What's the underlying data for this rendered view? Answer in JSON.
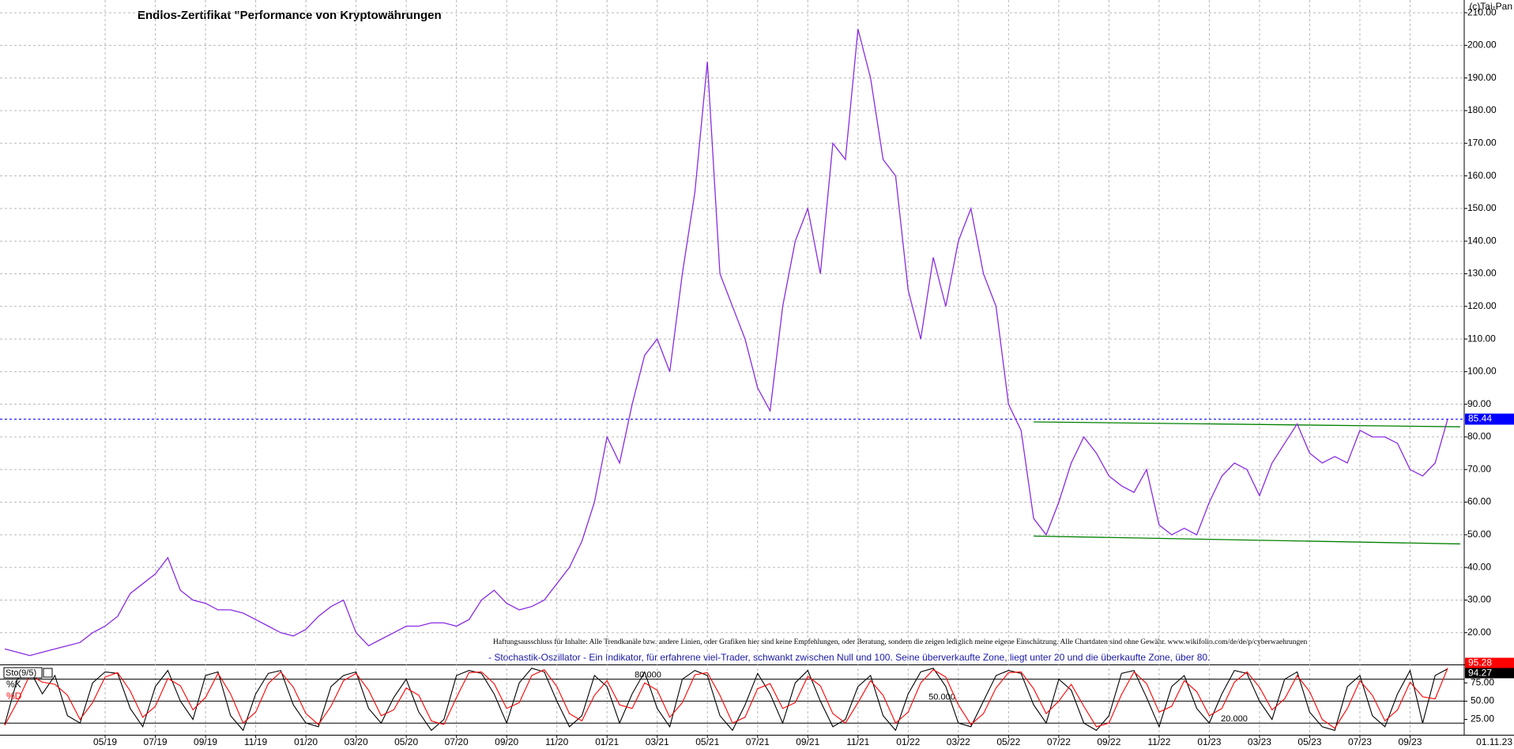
{
  "chart_data": [
    {
      "type": "line",
      "title": "Endlos-Zertifikat \"Performance von Kryptowährungen",
      "copyright": "(c)Tai-Pan",
      "disclaimer": "Haftungsausschluss für Inhalte: Alle Trendkanäle bzw. andere Linien, oder Grafiken hier sind keine Empfehlungen, oder Beratung, sondern die zeigen lediglich meine eigene Einschätzung. Alle Chartdaten sind ohne Gewähr.  www.wikifolio.com/de/de/p/cyberwaehrungen",
      "note": "- Stochastik-Oszillator - Ein Indikator, für erfahrene viel-Trader, schwankt zwischen Null und 100. Seine überverkaufte Zone, liegt unter 20 und die überkaufte Zone, über 80.",
      "last_date": "01.11.23",
      "xlim": [
        0,
        116
      ],
      "xticks": [
        {
          "value": 8,
          "label": "05/19"
        },
        {
          "value": 12,
          "label": "07/19"
        },
        {
          "value": 16,
          "label": "09/19"
        },
        {
          "value": 20,
          "label": "11/19"
        },
        {
          "value": 24,
          "label": "01/20"
        },
        {
          "value": 28,
          "label": "03/20"
        },
        {
          "value": 32,
          "label": "05/20"
        },
        {
          "value": 36,
          "label": "07/20"
        },
        {
          "value": 40,
          "label": "09/20"
        },
        {
          "value": 44,
          "label": "11/20"
        },
        {
          "value": 48,
          "label": "01/21"
        },
        {
          "value": 52,
          "label": "03/21"
        },
        {
          "value": 56,
          "label": "05/21"
        },
        {
          "value": 60,
          "label": "07/21"
        },
        {
          "value": 64,
          "label": "09/21"
        },
        {
          "value": 68,
          "label": "11/21"
        },
        {
          "value": 72,
          "label": "01/22"
        },
        {
          "value": 76,
          "label": "03/22"
        },
        {
          "value": 80,
          "label": "05/22"
        },
        {
          "value": 84,
          "label": "07/22"
        },
        {
          "value": 88,
          "label": "09/22"
        },
        {
          "value": 92,
          "label": "11/22"
        },
        {
          "value": 96,
          "label": "01/23"
        },
        {
          "value": 100,
          "label": "03/23"
        },
        {
          "value": 104,
          "label": "05/23"
        },
        {
          "value": 108,
          "label": "07/23"
        },
        {
          "value": 112,
          "label": "09/23"
        }
      ],
      "ylim": [
        10.5,
        213.9
      ],
      "yticks": [
        {
          "value": 20,
          "label": "20.00"
        },
        {
          "value": 30,
          "label": "30.00"
        },
        {
          "value": 40,
          "label": "40.00"
        },
        {
          "value": 50,
          "label": "50.00"
        },
        {
          "value": 60,
          "label": "60.00"
        },
        {
          "value": 70,
          "label": "70.00"
        },
        {
          "value": 80,
          "label": "80.00"
        },
        {
          "value": 90,
          "label": "90.00"
        },
        {
          "value": 100,
          "label": "100.00"
        },
        {
          "value": 110,
          "label": "110.00"
        },
        {
          "value": 120,
          "label": "120.00"
        },
        {
          "value": 130,
          "label": "130.00"
        },
        {
          "value": 140,
          "label": "140.00"
        },
        {
          "value": 150,
          "label": "150.00"
        },
        {
          "value": 160,
          "label": "160.00"
        },
        {
          "value": 170,
          "label": "170.00"
        },
        {
          "value": 180,
          "label": "180.00"
        },
        {
          "value": 190,
          "label": "190.00"
        },
        {
          "value": 200,
          "label": "200.00"
        },
        {
          "value": 210,
          "label": "210.00"
        }
      ],
      "grid": true,
      "color": "#8a2be2",
      "values": [
        15,
        14,
        13,
        14,
        15,
        16,
        17,
        20,
        22,
        25,
        32,
        35,
        38,
        43,
        33,
        30,
        29,
        27,
        27,
        26,
        24,
        22,
        20,
        19,
        21,
        25,
        28,
        30,
        20,
        16,
        18,
        20,
        22,
        22,
        23,
        23,
        22,
        24,
        30,
        33,
        29,
        27,
        28,
        30,
        35,
        40,
        48,
        60,
        80,
        72,
        90,
        105,
        110,
        100,
        130,
        155,
        195,
        130,
        120,
        110,
        95,
        88,
        120,
        140,
        150,
        130,
        170,
        165,
        205,
        190,
        165,
        160,
        125,
        110,
        135,
        120,
        140,
        150,
        130,
        120,
        90,
        82,
        55,
        50,
        60,
        72,
        80,
        75,
        68,
        65,
        63,
        70,
        53,
        50,
        52,
        50,
        60,
        68,
        72,
        70,
        62,
        72,
        78,
        84,
        75,
        72,
        74,
        72,
        82,
        80,
        80,
        78,
        70,
        68,
        72,
        85.44
      ],
      "last_price": {
        "value": 85.44,
        "label": "85.44"
      },
      "price_line_color": "#0000ff",
      "trend_color": "#008000",
      "trendlines": [
        {
          "x": [
            82,
            116
          ],
          "y": [
            84.6,
            83.1
          ]
        },
        {
          "x": [
            82,
            116
          ],
          "y": [
            49.6,
            47.2
          ]
        }
      ]
    },
    {
      "type": "stochastic",
      "label": "Sto(9/5)",
      "ylim": [
        4,
        98
      ],
      "yticks": [
        {
          "value": 25,
          "label": "25.00"
        },
        {
          "value": 50,
          "label": "50.00"
        },
        {
          "value": 75,
          "label": "75.00"
        }
      ],
      "levels": [
        {
          "value": 80,
          "label": "80.000"
        },
        {
          "value": 50,
          "label": "50.000"
        },
        {
          "value": 20,
          "label": "20.000"
        }
      ],
      "series": [
        {
          "name": "%K",
          "color": "#000000",
          "last_label": "94.27",
          "values": [
            18,
            80,
            92,
            60,
            85,
            30,
            20,
            75,
            90,
            88,
            40,
            15,
            70,
            92,
            50,
            25,
            85,
            90,
            30,
            10,
            60,
            88,
            92,
            45,
            20,
            15,
            70,
            85,
            90,
            40,
            20,
            55,
            80,
            35,
            10,
            25,
            85,
            92,
            88,
            60,
            20,
            75,
            95,
            90,
            50,
            15,
            30,
            85,
            70,
            20,
            60,
            90,
            40,
            15,
            80,
            92,
            85,
            30,
            10,
            45,
            88,
            60,
            20,
            75,
            92,
            50,
            15,
            25,
            70,
            85,
            30,
            10,
            60,
            90,
            95,
            70,
            20,
            15,
            50,
            85,
            92,
            88,
            45,
            20,
            80,
            65,
            20,
            10,
            30,
            88,
            92,
            55,
            15,
            70,
            85,
            40,
            20,
            60,
            92,
            88,
            50,
            25,
            80,
            90,
            35,
            15,
            10,
            70,
            85,
            30,
            15,
            60,
            92,
            20,
            85,
            94.27
          ]
        },
        {
          "name": "%D",
          "color": "#ff0000",
          "last_label": "95.28",
          "values": [
            17,
            49,
            86,
            76,
            73,
            58,
            25,
            48,
            83,
            89,
            64,
            28,
            43,
            81,
            71,
            38,
            55,
            88,
            60,
            20,
            35,
            74,
            90,
            69,
            33,
            18,
            43,
            78,
            88,
            65,
            30,
            38,
            68,
            58,
            23,
            18,
            55,
            89,
            90,
            74,
            40,
            48,
            85,
            93,
            70,
            33,
            23,
            58,
            78,
            45,
            40,
            75,
            65,
            28,
            48,
            86,
            89,
            58,
            20,
            28,
            67,
            74,
            40,
            48,
            84,
            71,
            33,
            20,
            48,
            78,
            58,
            20,
            35,
            75,
            93,
            83,
            45,
            18,
            33,
            68,
            89,
            90,
            67,
            33,
            50,
            73,
            43,
            15,
            20,
            59,
            90,
            74,
            35,
            43,
            78,
            63,
            30,
            40,
            76,
            90,
            69,
            38,
            53,
            85,
            63,
            25,
            13,
            40,
            78,
            58,
            23,
            38,
            76,
            56,
            53,
            95.28
          ]
        }
      ]
    }
  ]
}
